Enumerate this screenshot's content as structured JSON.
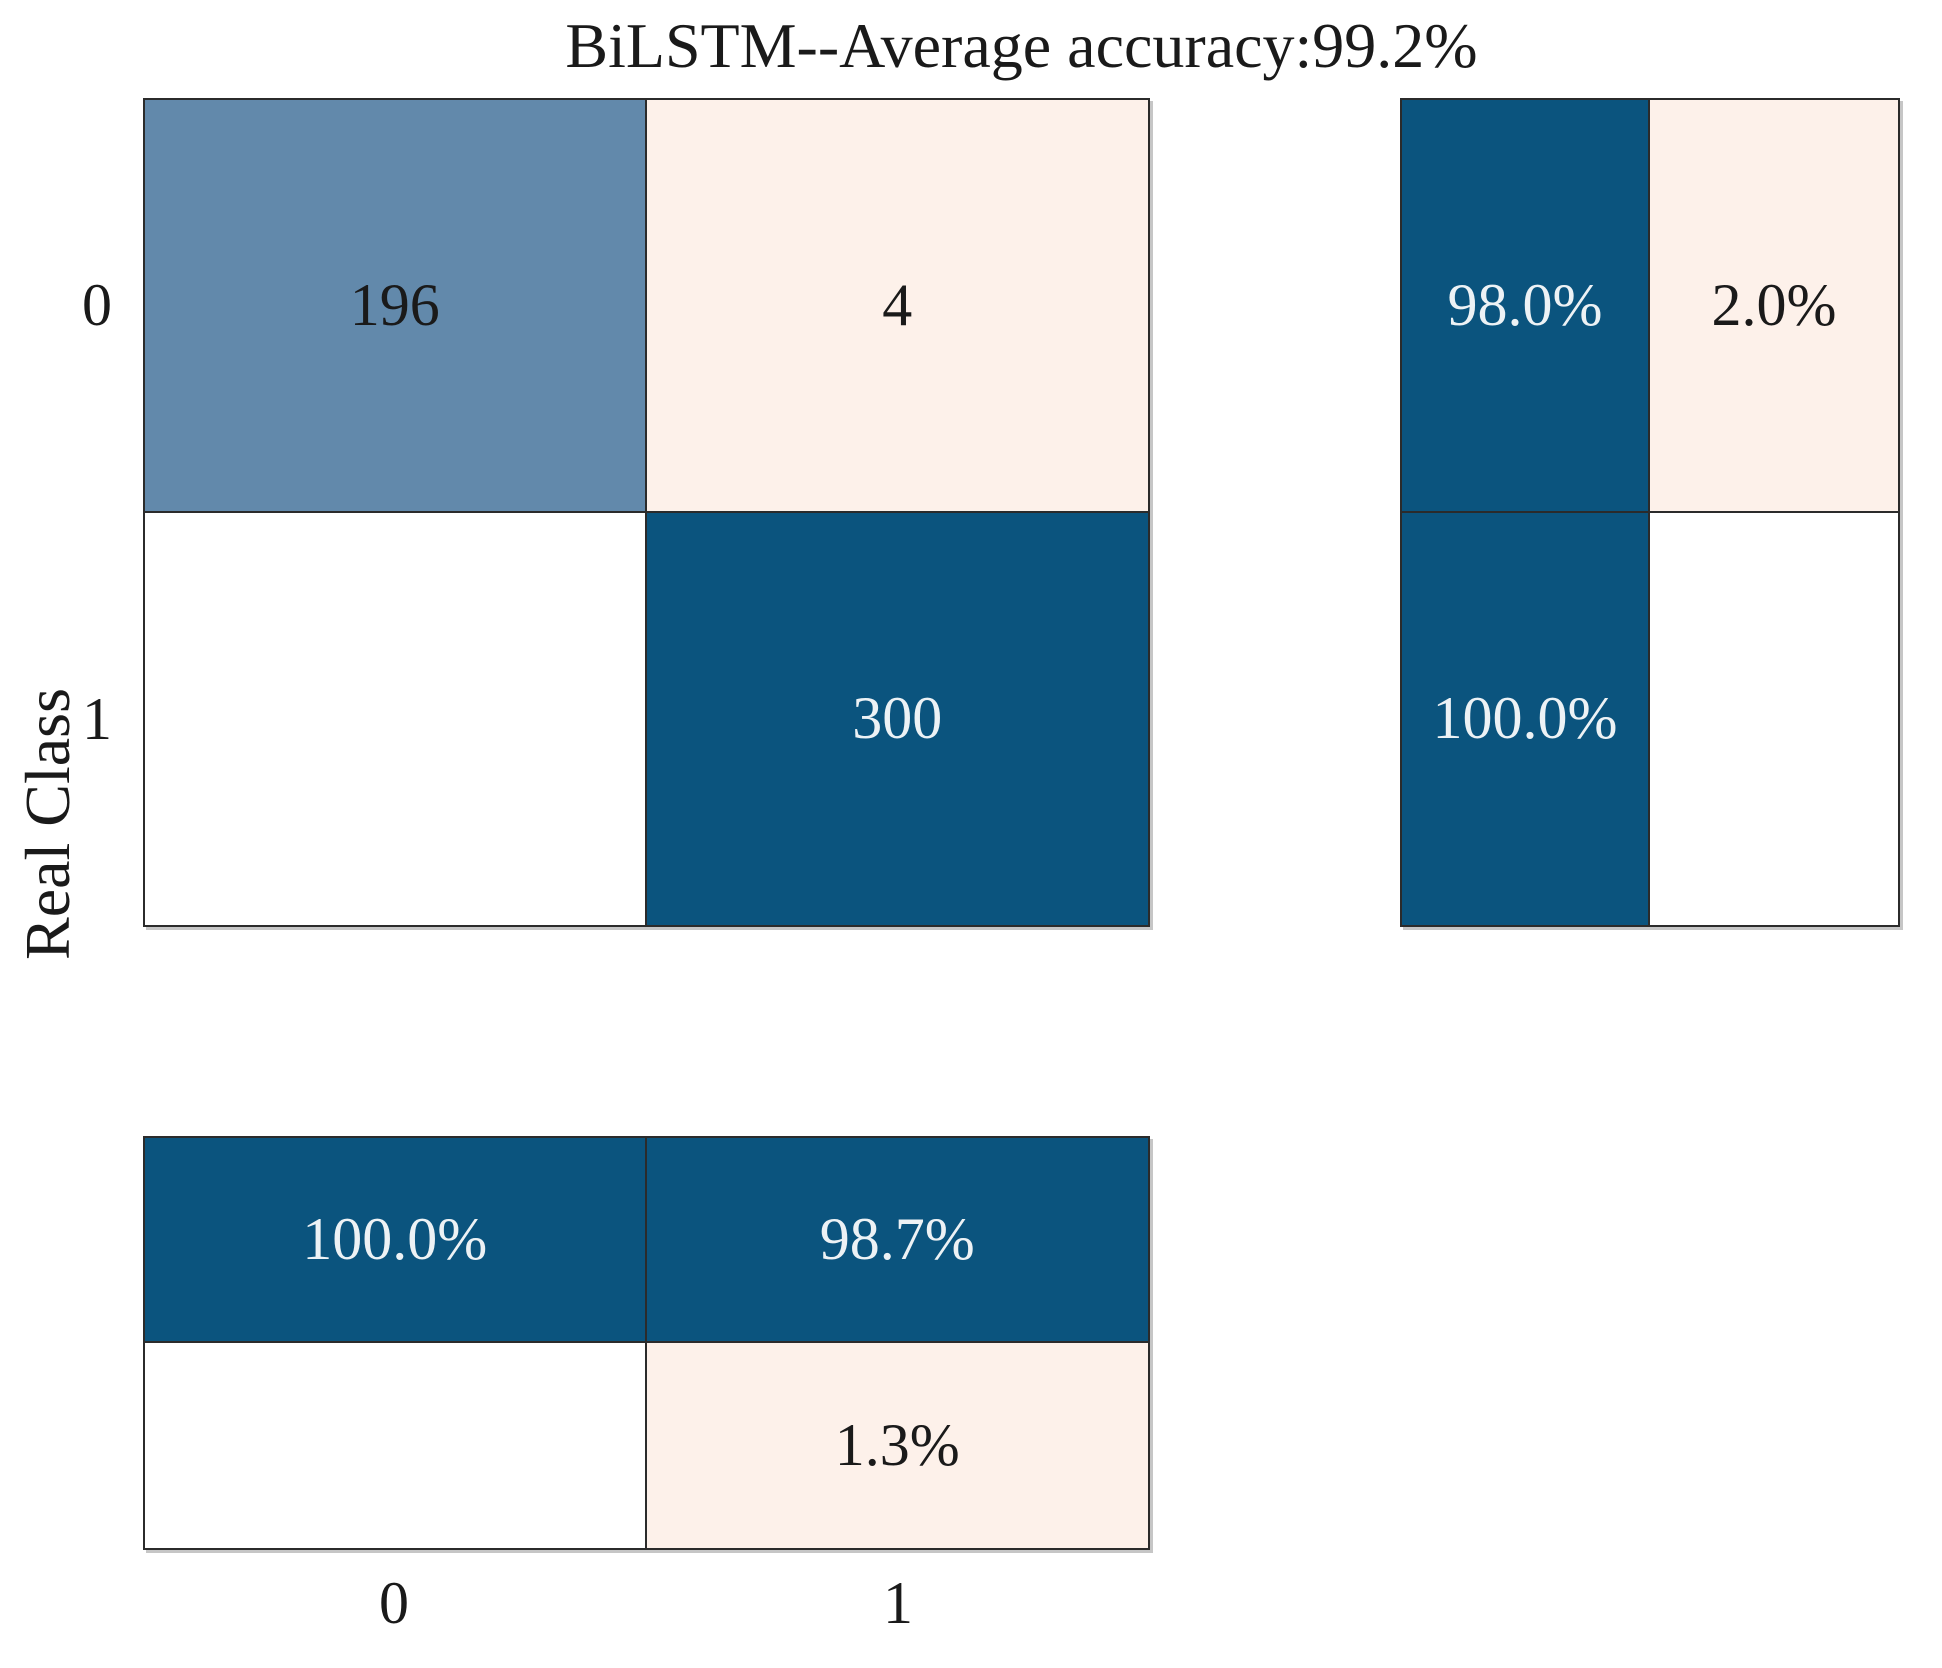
{
  "title": "BiLSTM--Average accuracy:99.2%",
  "axes": {
    "ylabel": "Real Class",
    "y_ticks": [
      "0",
      "1"
    ],
    "x_ticks": [
      "0",
      "1"
    ]
  },
  "palette": {
    "dark_blue": "#0b547e",
    "medium_blue": "#6289ab",
    "light_pink": "#fdf1ea",
    "white": "#ffffff",
    "border": "#2b2b2b",
    "text_dark": "#1a1a1a",
    "text_light": "#edf2f5"
  },
  "main_matrix": {
    "cells": [
      {
        "label": "196",
        "bg": "#6289ab",
        "fg": "#1a1a1a"
      },
      {
        "label": "4",
        "bg": "#fdf1ea",
        "fg": "#1a1a1a"
      },
      {
        "label": "",
        "bg": "#ffffff",
        "fg": "#1a1a1a"
      },
      {
        "label": "300",
        "bg": "#0b547e",
        "fg": "#edf2f5"
      }
    ]
  },
  "row_percent_panel": {
    "cells": [
      {
        "label": "98.0%",
        "bg": "#0b547e",
        "fg": "#edf2f5"
      },
      {
        "label": "2.0%",
        "bg": "#fdf1ea",
        "fg": "#1a1a1a"
      },
      {
        "label": "100.0%",
        "bg": "#0b547e",
        "fg": "#edf2f5"
      },
      {
        "label": "",
        "bg": "#ffffff",
        "fg": "#1a1a1a"
      }
    ]
  },
  "col_percent_panel": {
    "cells": [
      {
        "label": "100.0%",
        "bg": "#0b547e",
        "fg": "#edf2f5"
      },
      {
        "label": "98.7%",
        "bg": "#0b547e",
        "fg": "#edf2f5"
      },
      {
        "label": "",
        "bg": "#ffffff",
        "fg": "#1a1a1a"
      },
      {
        "label": "1.3%",
        "bg": "#fdf1ea",
        "fg": "#1a1a1a"
      }
    ]
  },
  "chart_data": {
    "type": "heatmap",
    "title": "BiLSTM--Average accuracy:99.2%",
    "model": "BiLSTM",
    "average_accuracy_percent": 99.2,
    "xlabel": "",
    "ylabel": "Real Class",
    "classes": [
      "0",
      "1"
    ],
    "confusion_counts": [
      [
        196,
        4
      ],
      [
        null,
        300
      ]
    ],
    "row_percentages": [
      [
        98.0,
        2.0
      ],
      [
        100.0,
        null
      ]
    ],
    "column_percentages": [
      [
        100.0,
        98.7
      ],
      [
        null,
        1.3
      ]
    ],
    "legend_position": "none",
    "grid": "cell-borders",
    "layout": "main count matrix top-left, per-row percentages top-right, per-column percentages bottom-left"
  }
}
